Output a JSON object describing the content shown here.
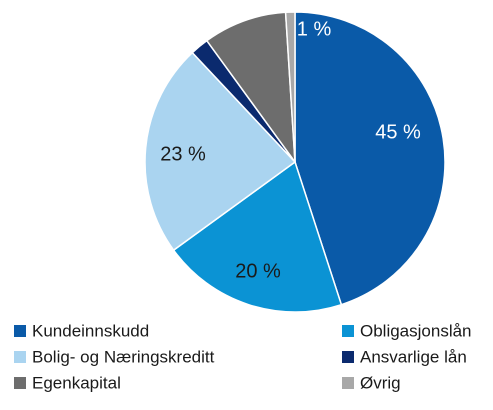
{
  "chart_data": {
    "type": "pie",
    "categories": [
      "Kundeinnskudd",
      "Obligasjonslån",
      "Bolig- og Næringskreditt",
      "Ansvarlige lån",
      "Egenkapital",
      "Øvrig"
    ],
    "values": [
      45,
      20,
      23,
      2,
      9,
      1
    ],
    "value_labels": [
      "45 %",
      "20 %",
      "23 %",
      null,
      null,
      "1 %"
    ],
    "colors": [
      "#0a5aa8",
      "#0b93d4",
      "#aad4f0",
      "#0b2a6e",
      "#6d6d6d",
      "#a8a8a8"
    ],
    "label_colors": [
      "#ffffff",
      "#1a1a1a",
      "#1a1a1a",
      null,
      null,
      "#ffffff"
    ],
    "legend": "bottom"
  }
}
